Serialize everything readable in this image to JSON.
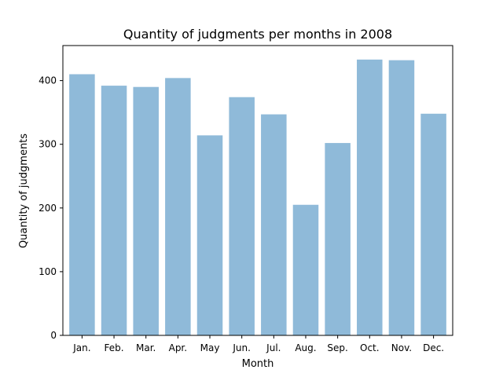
{
  "chart_data": {
    "type": "bar",
    "title": "Quantity of judgments per months in 2008",
    "xlabel": "Month",
    "ylabel": "Quantity of judgments",
    "categories": [
      "Jan.",
      "Feb.",
      "Mar.",
      "Apr.",
      "May",
      "Jun.",
      "Jul.",
      "Aug.",
      "Sep.",
      "Oct.",
      "Nov.",
      "Dec."
    ],
    "values": [
      410,
      392,
      390,
      404,
      314,
      374,
      347,
      205,
      302,
      433,
      432,
      348
    ],
    "ylim": [
      0,
      455
    ],
    "yticks": [
      0,
      100,
      200,
      300,
      400
    ],
    "grid": false,
    "bar_color": "#8fbad9"
  }
}
